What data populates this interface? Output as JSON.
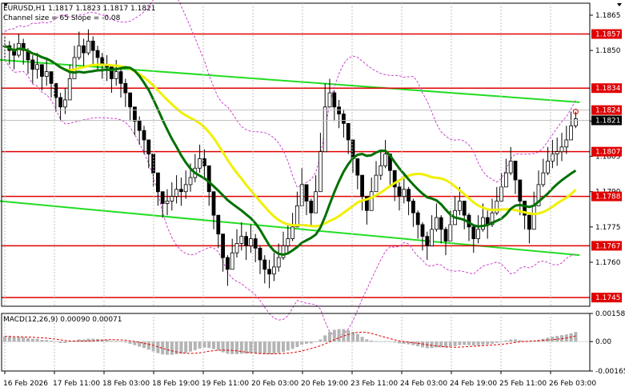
{
  "header": {
    "line1": "EURUSD,H1  1.1817 1.1823 1.1817 1.1821",
    "line2": "Channel size = 65 Slope = -0.08"
  },
  "macd": {
    "label": "MACD(12,26,9) 0.00090 0.00071",
    "ticks": [
      "0.00158",
      "0.00",
      "-0.00165"
    ]
  },
  "colors": {
    "candle": "#000000",
    "level": "#e00000",
    "price_tag": "#e00000",
    "current_tag": "#000000",
    "channel": "#22dd22",
    "ma_fast": "#007000",
    "ma_slow": "#f0f000",
    "envelope": "#cc44cc",
    "macd_hist": "#b4b4b4",
    "macd_signal": "#e00000"
  },
  "chart_data": {
    "type": "candlestick",
    "symbol": "EURUSD",
    "timeframe": "H1",
    "ohlc_last": {
      "open": 1.1817,
      "high": 1.1823,
      "low": 1.1817,
      "close": 1.1821
    },
    "x_tick_labels": [
      "16 Feb 2026",
      "17 Feb 11:00",
      "18 Feb 03:00",
      "18 Feb 19:00",
      "19 Feb 11:00",
      "20 Feb 03:00",
      "20 Feb 19:00",
      "23 Feb 11:00",
      "24 Feb 03:00",
      "24 Feb 19:00",
      "25 Feb 11:00",
      "26 Feb 03:00"
    ],
    "y_tick_labels": [
      "1.1865",
      "1.1850",
      "1.1820",
      "1.1805",
      "1.1790",
      "1.1775",
      "1.1760"
    ],
    "ylim": [
      1.174,
      1.187
    ],
    "levels": [
      {
        "value": 1.1857,
        "label": "1.1857"
      },
      {
        "value": 1.1834,
        "label": "1.1834"
      },
      {
        "value": 1.1807,
        "label": "1.1807"
      },
      {
        "value": 1.1788,
        "label": "1.1788"
      },
      {
        "value": 1.1767,
        "label": "1.1767"
      },
      {
        "value": 1.1745,
        "label": "1.1745"
      }
    ],
    "price_tags": [
      {
        "value": 1.1824,
        "label": "1.1824"
      },
      {
        "value": 1.1821,
        "label": "1.1821"
      }
    ],
    "channel_lines": [
      {
        "from": [
          0,
          1.1846
        ],
        "to": [
          123,
          1.1828
        ]
      },
      {
        "from": [
          0,
          1.1786
        ],
        "to": [
          123,
          1.1763
        ]
      }
    ],
    "close": [
      1.1852,
      1.185,
      1.1848,
      1.1853,
      1.185,
      1.1846,
      1.1842,
      1.1844,
      1.1839,
      1.1841,
      1.1836,
      1.183,
      1.1826,
      1.1829,
      1.1838,
      1.1847,
      1.1852,
      1.1849,
      1.1854,
      1.185,
      1.1847,
      1.1844,
      1.1843,
      1.1838,
      1.1841,
      1.1836,
      1.1832,
      1.1826,
      1.182,
      1.1816,
      1.1812,
      1.1806,
      1.1798,
      1.179,
      1.1785,
      1.1786,
      1.1788,
      1.1791,
      1.179,
      1.1793,
      1.1796,
      1.18,
      1.1804,
      1.1801,
      1.179,
      1.178,
      1.1772,
      1.1762,
      1.1757,
      1.1764,
      1.1768,
      1.1771,
      1.1767,
      1.177,
      1.1766,
      1.1761,
      1.1757,
      1.1755,
      1.1758,
      1.1762,
      1.1767,
      1.177,
      1.1775,
      1.1784,
      1.1793,
      1.1786,
      1.1781,
      1.179,
      1.1807,
      1.1826,
      1.1832,
      1.1826,
      1.1823,
      1.1819,
      1.1812,
      1.1804,
      1.1797,
      1.1788,
      1.1782,
      1.179,
      1.1797,
      1.1801,
      1.1806,
      1.1799,
      1.1792,
      1.1788,
      1.1791,
      1.1786,
      1.1781,
      1.1776,
      1.1771,
      1.1767,
      1.1774,
      1.1779,
      1.1774,
      1.1769,
      1.1776,
      1.1782,
      1.1786,
      1.178,
      1.1775,
      1.177,
      1.1774,
      1.1779,
      1.1776,
      1.1781,
      1.1786,
      1.1792,
      1.1798,
      1.1803,
      1.1795,
      1.1786,
      1.178,
      1.1774,
      1.1784,
      1.1793,
      1.1798,
      1.1803,
      1.1806,
      1.1807,
      1.1809,
      1.1812,
      1.1818,
      1.1821
    ],
    "high": [
      1.1856,
      1.1854,
      1.1853,
      1.1857,
      1.1855,
      1.1851,
      1.1848,
      1.1849,
      1.1844,
      1.1846,
      1.1841,
      1.1836,
      1.1832,
      1.1834,
      1.1844,
      1.1852,
      1.1858,
      1.1855,
      1.1859,
      1.1856,
      1.1852,
      1.1849,
      1.1848,
      1.1844,
      1.1846,
      1.1842,
      1.1838,
      1.1832,
      1.1826,
      1.1822,
      1.1818,
      1.1812,
      1.1804,
      1.1796,
      1.179,
      1.1791,
      1.1794,
      1.1797,
      1.1796,
      1.1799,
      1.1802,
      1.1806,
      1.181,
      1.1808,
      1.1797,
      1.1786,
      1.1778,
      1.1768,
      1.1763,
      1.177,
      1.1774,
      1.1777,
      1.1773,
      1.1776,
      1.1772,
      1.1767,
      1.1763,
      1.1761,
      1.1764,
      1.1768,
      1.1773,
      1.1776,
      1.1781,
      1.179,
      1.18,
      1.1793,
      1.1787,
      1.1797,
      1.1815,
      1.1836,
      1.1838,
      1.1833,
      1.1829,
      1.1825,
      1.1818,
      1.181,
      1.1803,
      1.1794,
      1.1788,
      1.1796,
      1.1803,
      1.1807,
      1.1812,
      1.1806,
      1.1798,
      1.1794,
      1.1797,
      1.1792,
      1.1787,
      1.1782,
      1.1777,
      1.1773,
      1.178,
      1.1785,
      1.178,
      1.1775,
      1.1782,
      1.1788,
      1.1792,
      1.1786,
      1.1781,
      1.1776,
      1.178,
      1.1785,
      1.1782,
      1.1787,
      1.1792,
      1.1798,
      1.1804,
      1.1809,
      1.1802,
      1.1792,
      1.1786,
      1.178,
      1.179,
      1.1799,
      1.1804,
      1.1809,
      1.1812,
      1.1813,
      1.1815,
      1.1818,
      1.1824,
      1.1824
    ],
    "low": [
      1.1846,
      1.1844,
      1.1842,
      1.1847,
      1.1844,
      1.184,
      1.1836,
      1.1838,
      1.1833,
      1.1835,
      1.183,
      1.1824,
      1.182,
      1.1823,
      1.1832,
      1.1841,
      1.1846,
      1.1843,
      1.1848,
      1.1844,
      1.1841,
      1.1838,
      1.1837,
      1.1832,
      1.1835,
      1.183,
      1.1826,
      1.182,
      1.1814,
      1.181,
      1.1806,
      1.18,
      1.1792,
      1.1784,
      1.1779,
      1.178,
      1.1782,
      1.1785,
      1.1784,
      1.1787,
      1.179,
      1.1794,
      1.1798,
      1.1795,
      1.1784,
      1.1774,
      1.1766,
      1.1756,
      1.175,
      1.1758,
      1.1762,
      1.1765,
      1.1761,
      1.1764,
      1.176,
      1.1755,
      1.1751,
      1.1749,
      1.1752,
      1.1756,
      1.1761,
      1.1764,
      1.1769,
      1.1778,
      1.1787,
      1.178,
      1.1775,
      1.1784,
      1.1801,
      1.182,
      1.1826,
      1.182,
      1.1817,
      1.1813,
      1.1806,
      1.1798,
      1.1791,
      1.1782,
      1.1776,
      1.1784,
      1.1791,
      1.1795,
      1.18,
      1.1793,
      1.1786,
      1.1782,
      1.1785,
      1.178,
      1.1775,
      1.177,
      1.1765,
      1.1761,
      1.1768,
      1.1773,
      1.1768,
      1.1763,
      1.177,
      1.1776,
      1.178,
      1.1774,
      1.1769,
      1.1764,
      1.1768,
      1.1773,
      1.177,
      1.1775,
      1.178,
      1.1786,
      1.1792,
      1.1797,
      1.1789,
      1.178,
      1.1774,
      1.1768,
      1.1778,
      1.1787,
      1.1792,
      1.1797,
      1.18,
      1.1801,
      1.1803,
      1.1806,
      1.1812,
      1.1817
    ],
    "macd_hist": [
      0.0003,
      0.00028,
      0.00025,
      0.00026,
      0.00024,
      0.0002,
      0.00016,
      0.00015,
      0.0001,
      9e-05,
      5e-05,
      -2e-05,
      -8e-05,
      -8e-05,
      -2e-05,
      6e-05,
      0.00012,
      0.00012,
      0.00016,
      0.00016,
      0.00014,
      0.00011,
      9e-05,
      4e-05,
      4e-05,
      0.0,
      -5e-05,
      -0.00012,
      -0.0002,
      -0.00028,
      -0.00036,
      -0.00045,
      -0.00055,
      -0.00065,
      -0.00072,
      -0.00074,
      -0.00074,
      -0.00071,
      -0.00068,
      -0.00063,
      -0.00056,
      -0.00048,
      -0.00039,
      -0.00034,
      -0.00036,
      -0.00042,
      -0.0005,
      -0.0006,
      -0.00068,
      -0.0007,
      -0.0007,
      -0.00068,
      -0.00068,
      -0.00066,
      -0.00066,
      -0.00068,
      -0.0007,
      -0.00071,
      -0.00069,
      -0.00064,
      -0.00058,
      -0.0005,
      -0.00041,
      -0.0003,
      -0.00017,
      -0.00012,
      -0.0001,
      -3e-05,
      0.00012,
      0.00035,
      0.00055,
      0.00066,
      0.0007,
      0.0007,
      0.00064,
      0.00054,
      0.00042,
      0.00027,
      0.00013,
      6e-05,
      3e-05,
      2e-05,
      3e-05,
      0.0,
      -5e-05,
      -0.0001,
      -0.00012,
      -0.00015,
      -0.0002,
      -0.00026,
      -0.00032,
      -0.00037,
      -0.00036,
      -0.00033,
      -0.00032,
      -0.00033,
      -0.0003,
      -0.00025,
      -0.0002,
      -0.00019,
      -0.0002,
      -0.00022,
      -0.00021,
      -0.00018,
      -0.00016,
      -0.00012,
      -7e-05,
      -1e-05,
      6e-05,
      0.00012,
      0.00012,
      8e-05,
      4e-05,
      -1e-05,
      3e-05,
      9e-05,
      0.00015,
      0.00022,
      0.00028,
      0.00032,
      0.00036,
      0.0004,
      0.00047,
      0.00054
    ],
    "macd_ylim": [
      -0.00165,
      0.00158
    ]
  }
}
